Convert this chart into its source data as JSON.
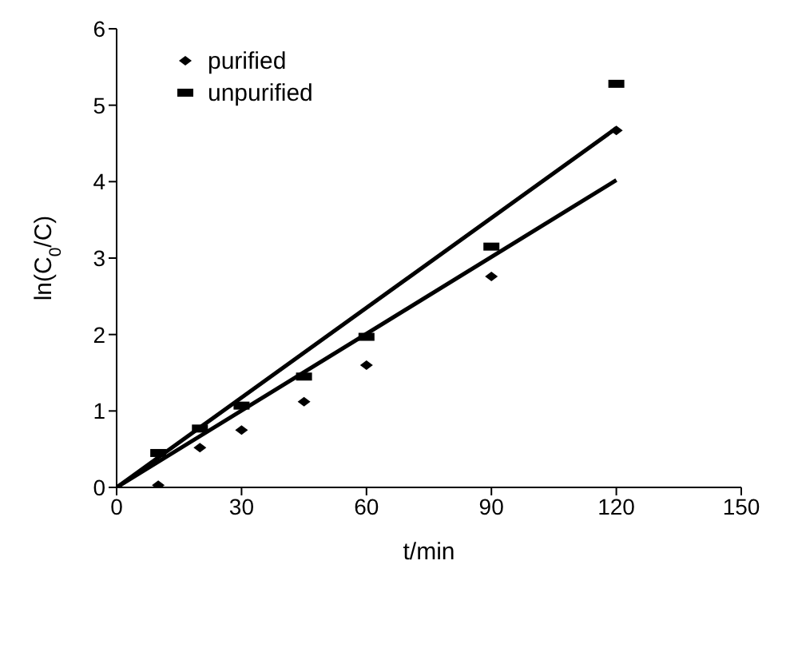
{
  "chart_data": {
    "type": "scatter",
    "xlabel": "t/min",
    "ylabel": "ln(C$_{0}$/C)",
    "xlim": [
      0,
      150
    ],
    "xticks": [
      0,
      30,
      60,
      90,
      120,
      150
    ],
    "ylim": [
      0,
      6
    ],
    "yticks": [
      0,
      1,
      2,
      3,
      4,
      5,
      6
    ],
    "grid": false,
    "legend": "top left",
    "series": [
      {
        "name": "purified",
        "color": "#000000",
        "marker": "diamond",
        "x": [
          10,
          20,
          30,
          45,
          60,
          90,
          120
        ],
        "values": [
          0.03,
          0.52,
          0.75,
          1.12,
          1.6,
          2.76,
          4.67
        ]
      },
      {
        "name": "unpurified",
        "color": "#000000",
        "marker": "square",
        "x": [
          10,
          20,
          30,
          45,
          60,
          90,
          120
        ],
        "values": [
          0.45,
          0.77,
          1.07,
          1.45,
          1.97,
          3.15,
          5.28
        ]
      },
      {
        "type": "line",
        "color": "#000000",
        "x": [
          0,
          120
        ],
        "values": [
          0,
          4.02
        ]
      },
      {
        "type": "line",
        "color": "#000000",
        "x": [
          0,
          120
        ],
        "values": [
          0,
          4.7
        ]
      }
    ]
  }
}
